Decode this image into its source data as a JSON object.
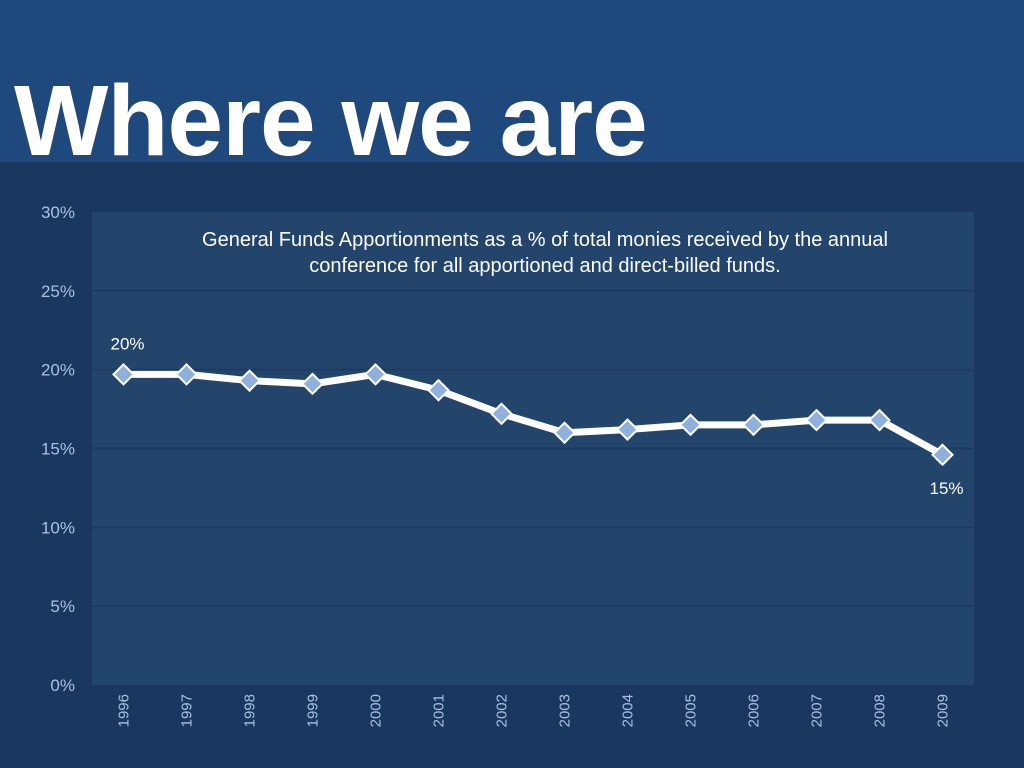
{
  "slide": {
    "title": "Where we are"
  },
  "colors": {
    "title_band": "#1f497d",
    "background": "#1a375f",
    "plot_area": "#23446b",
    "gridline": "#1b3a60",
    "line": "#ffffff",
    "marker": "#8fb0dd",
    "tick_label": "#a9c1e3"
  },
  "chart_data": {
    "type": "line",
    "title": "General Funds Apportionments as a % of total monies received by the annual conference for all apportioned and direct-billed funds.",
    "xlabel": "",
    "ylabel": "",
    "categories": [
      "1996",
      "1997",
      "1998",
      "1999",
      "2000",
      "2001",
      "2002",
      "2003",
      "2004",
      "2005",
      "2006",
      "2007",
      "2008",
      "2009"
    ],
    "series": [
      {
        "values": [
          19.7,
          19.7,
          19.3,
          19.1,
          19.7,
          18.7,
          17.2,
          16.0,
          16.2,
          16.5,
          16.5,
          16.8,
          16.8,
          14.6
        ],
        "marker": "diamond"
      }
    ],
    "ylim": [
      0,
      30
    ],
    "yticks": [
      0,
      5,
      10,
      15,
      20,
      25,
      30
    ],
    "ytick_labels": [
      "0%",
      "5%",
      "10%",
      "15%",
      "20%",
      "25%",
      "30%"
    ],
    "data_labels": [
      {
        "index": 0,
        "text": "20%",
        "position": "above"
      },
      {
        "index": 13,
        "text": "15%",
        "position": "below"
      }
    ],
    "grid": true,
    "legend": "none",
    "x_tick_rotation": "vertical"
  }
}
